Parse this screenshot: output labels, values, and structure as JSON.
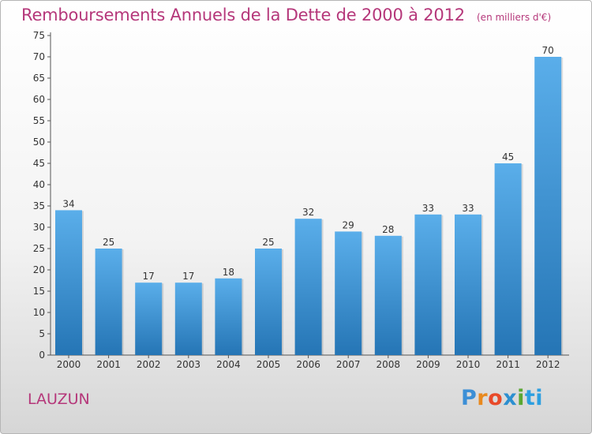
{
  "header": {
    "title": "Remboursements Annuels de la Dette de 2000 à 2012",
    "unit": "(en milliers d'€)"
  },
  "footer": {
    "commune": "LAUZUN",
    "logo_text": "Proxiti"
  },
  "colors": {
    "title": "#b5377a",
    "bar_top": "#5aaeea",
    "bar_bottom": "#2575b5"
  },
  "chart_data": {
    "type": "bar",
    "title": "Remboursements Annuels de la Dette de 2000 à 2012",
    "xlabel": "",
    "ylabel": "",
    "categories": [
      "2000",
      "2001",
      "2002",
      "2003",
      "2004",
      "2005",
      "2006",
      "2007",
      "2008",
      "2009",
      "2010",
      "2011",
      "2012"
    ],
    "values": [
      34,
      25,
      17,
      17,
      18,
      25,
      32,
      29,
      28,
      33,
      33,
      45,
      70
    ],
    "ylim": [
      0,
      75
    ],
    "yticks": [
      0,
      5,
      10,
      15,
      20,
      25,
      30,
      35,
      40,
      45,
      50,
      55,
      60,
      65,
      70,
      75
    ],
    "grid": false,
    "legend": "none",
    "data_labels": true
  }
}
